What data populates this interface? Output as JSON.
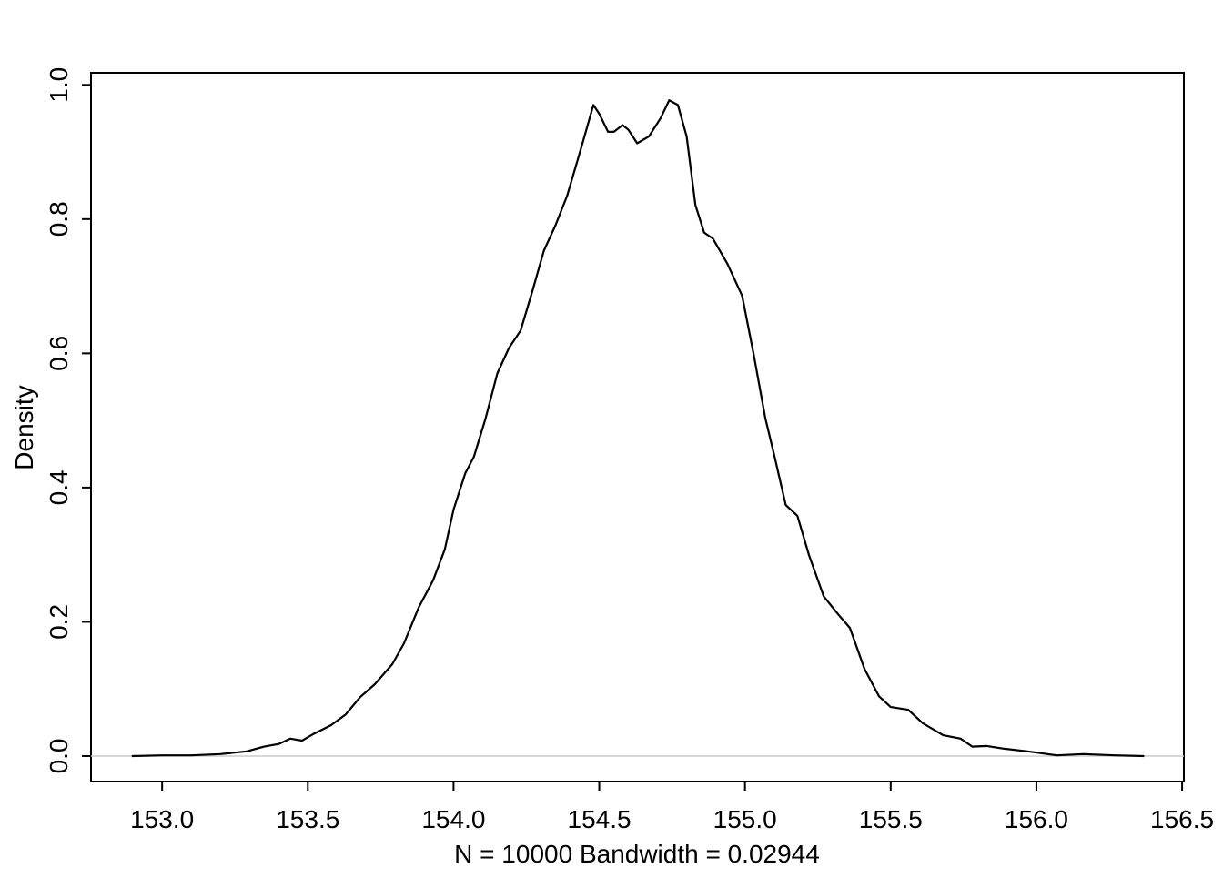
{
  "chart_data": {
    "type": "line",
    "xlabel": "N = 10000   Bandwidth = 0.02944",
    "ylabel": "Density",
    "x": [
      152.896,
      153.0,
      153.1,
      153.2,
      153.29,
      153.35,
      153.4,
      153.44,
      153.48,
      153.52,
      153.58,
      153.63,
      153.68,
      153.73,
      153.79,
      153.83,
      153.88,
      153.93,
      153.97,
      154.0,
      154.04,
      154.07,
      154.11,
      154.15,
      154.19,
      154.23,
      154.27,
      154.31,
      154.35,
      154.39,
      154.44,
      154.48,
      154.5,
      154.53,
      154.55,
      154.58,
      154.6,
      154.63,
      154.67,
      154.71,
      154.74,
      154.77,
      154.8,
      154.83,
      154.86,
      154.89,
      154.94,
      154.99,
      155.03,
      155.07,
      155.1,
      155.14,
      155.18,
      155.22,
      155.27,
      155.32,
      155.36,
      155.41,
      155.46,
      155.5,
      155.56,
      155.61,
      155.68,
      155.74,
      155.78,
      155.83,
      155.89,
      155.97,
      156.07,
      156.16,
      156.27,
      156.37
    ],
    "series": [
      {
        "color": "#000000",
        "values": [
          0,
          0.001,
          0.001,
          0.003,
          0.007,
          0.014,
          0.018,
          0.026,
          0.023,
          0.033,
          0.046,
          0.062,
          0.088,
          0.107,
          0.137,
          0.168,
          0.221,
          0.262,
          0.308,
          0.367,
          0.421,
          0.446,
          0.503,
          0.57,
          0.608,
          0.634,
          0.692,
          0.753,
          0.791,
          0.835,
          0.909,
          0.97,
          0.957,
          0.93,
          0.93,
          0.94,
          0.933,
          0.913,
          0.923,
          0.95,
          0.977,
          0.97,
          0.923,
          0.821,
          0.78,
          0.771,
          0.733,
          0.686,
          0.598,
          0.503,
          0.449,
          0.374,
          0.358,
          0.299,
          0.238,
          0.211,
          0.191,
          0.13,
          0.089,
          0.073,
          0.069,
          0.049,
          0.031,
          0.026,
          0.014,
          0.015,
          0.011,
          0.007,
          0.001,
          0.003,
          0.001,
          0
        ]
      }
    ],
    "xlim": [
      152.756,
      156.506
    ],
    "ylim": [
      -0.038,
      1.018
    ],
    "xticks": [
      {
        "value": 153.0,
        "label": "153.0"
      },
      {
        "value": 153.5,
        "label": "153.5"
      },
      {
        "value": 154.0,
        "label": "154.0"
      },
      {
        "value": 154.5,
        "label": "154.5"
      },
      {
        "value": 155.0,
        "label": "155.0"
      },
      {
        "value": 155.5,
        "label": "155.5"
      },
      {
        "value": 156.0,
        "label": "156.0"
      },
      {
        "value": 156.5,
        "label": "156.5"
      }
    ],
    "yticks": [
      {
        "value": 0,
        "label": "0.0"
      },
      {
        "value": 0.2,
        "label": "0.2"
      },
      {
        "value": 0.4,
        "label": "0.4"
      },
      {
        "value": 0.6,
        "label": "0.6"
      },
      {
        "value": 0.8,
        "label": "0.8"
      },
      {
        "value": 1,
        "label": "1.0"
      }
    ],
    "zero_line_color": "#cccccc"
  }
}
